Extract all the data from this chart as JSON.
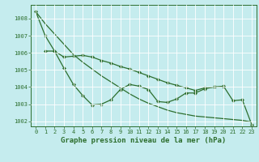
{
  "bg_color": "#c5ecee",
  "grid_color": "#ffffff",
  "line_color": "#2d6e2d",
  "series": {
    "s1_x": [
      0,
      1,
      2,
      3,
      4,
      5,
      6,
      7,
      8,
      9,
      10,
      11,
      12,
      13,
      14,
      15,
      16,
      17,
      18,
      19,
      20
    ],
    "s1_y": [
      1008.4,
      1007.0,
      1006.1,
      1005.1,
      1004.15,
      1003.5,
      1002.95,
      1003.0,
      1003.25,
      1003.85,
      1004.15,
      1004.05,
      1003.85,
      1003.15,
      1003.1,
      1003.3,
      1003.65,
      1003.65,
      1003.9,
      1004.0,
      1004.0
    ],
    "s2_x": [
      1,
      2,
      3,
      4,
      5,
      6,
      7,
      8,
      9,
      10,
      11,
      12,
      13,
      14,
      15,
      16,
      17,
      18,
      19,
      20,
      21,
      22,
      23
    ],
    "s2_y": [
      1006.1,
      1006.1,
      1005.75,
      1005.8,
      1005.85,
      1005.75,
      1005.55,
      1005.4,
      1005.2,
      1005.05,
      1004.85,
      1004.65,
      1004.45,
      1004.25,
      1004.1,
      1003.95,
      1003.8,
      1003.95,
      1004.0,
      1004.05,
      1003.2,
      1003.25,
      1001.8
    ],
    "s3_x": [
      0,
      1,
      2,
      3,
      4,
      5,
      6,
      7,
      8,
      9,
      10,
      11,
      12,
      13,
      14,
      15,
      16,
      17,
      18,
      19,
      20,
      21,
      22,
      23
    ],
    "s3_y": [
      1008.4,
      1007.7,
      1007.1,
      1006.5,
      1005.9,
      1005.45,
      1005.05,
      1004.65,
      1004.3,
      1003.95,
      1003.6,
      1003.3,
      1003.05,
      1002.85,
      1002.65,
      1002.5,
      1002.4,
      1002.3,
      1002.25,
      1002.2,
      1002.15,
      1002.1,
      1002.05,
      1001.95
    ]
  },
  "ylim": [
    1001.7,
    1008.8
  ],
  "xlim": [
    -0.5,
    23.5
  ],
  "yticks": [
    1002,
    1003,
    1004,
    1005,
    1006,
    1007,
    1008
  ],
  "xticks": [
    0,
    1,
    2,
    3,
    4,
    5,
    6,
    7,
    8,
    9,
    10,
    11,
    12,
    13,
    14,
    15,
    16,
    17,
    18,
    19,
    20,
    21,
    22,
    23
  ],
  "tick_fontsize": 5.0,
  "label_fontsize": 6.5,
  "xlabel": "Graphe pression niveau de la mer (hPa)",
  "marker": "D",
  "markersize": 2.2,
  "linewidth": 0.9
}
